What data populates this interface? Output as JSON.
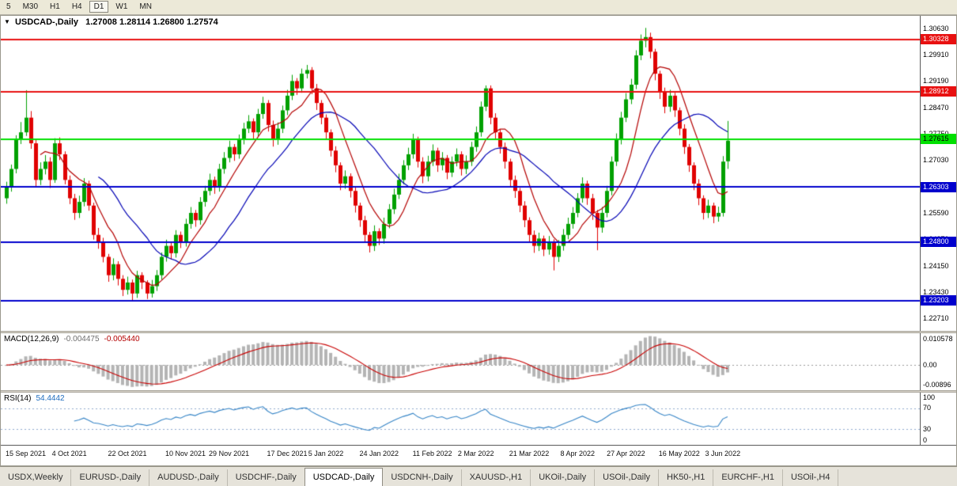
{
  "toolbar": {
    "timeframes": [
      "5",
      "M30",
      "H1",
      "H4",
      "D1",
      "W1",
      "MN"
    ],
    "active": "D1"
  },
  "chart": {
    "dropdown_glyph": "▼",
    "title_symbol": "USDCAD-,Daily",
    "title_ohlc": "1.27008 1.28114 1.26800 1.27574",
    "colors": {
      "up": "#00a000",
      "down": "#e00000",
      "ma_fast": "#b40000",
      "ma_slow": "#0000b4",
      "bg": "#ffffff"
    }
  },
  "price_axis": {
    "min": 1.2238,
    "max": 1.3098,
    "ticks": [
      "1.30630",
      "1.29910",
      "1.29190",
      "1.28470",
      "1.27750",
      "1.27030",
      "1.26310",
      "1.25590",
      "1.24870",
      "1.24150",
      "1.23430",
      "1.22710"
    ]
  },
  "hlines": [
    {
      "price": 1.30328,
      "label": "1.30328",
      "color": "#e81010",
      "text_color": "#ffffff"
    },
    {
      "price": 1.28912,
      "label": "1.28912",
      "color": "#e81010",
      "text_color": "#ffffff"
    },
    {
      "price": 1.27615,
      "label": "1.27615",
      "color": "#00e000",
      "text_color": "#000000"
    },
    {
      "price": 1.26303,
      "label": "1.26303",
      "color": "#0000cd",
      "text_color": "#ffffff"
    },
    {
      "price": 1.248,
      "label": "1.24800",
      "color": "#0000cd",
      "text_color": "#ffffff"
    },
    {
      "price": 1.23203,
      "label": "1.23203",
      "color": "#0000cd",
      "text_color": "#ffffff"
    }
  ],
  "chart_data": {
    "type": "candlestick",
    "symbol": "USDCAD",
    "timeframe": "Daily",
    "current_bar": {
      "open": 1.27008,
      "high": 1.28114,
      "low": 1.268,
      "close": 1.27574
    },
    "indicators": [
      {
        "type": "MA",
        "period": 8,
        "color": "#b40000"
      },
      {
        "type": "MA",
        "period": 20,
        "color": "#0000b4"
      },
      {
        "type": "MACD",
        "params": [
          12,
          26,
          9
        ]
      },
      {
        "type": "RSI",
        "params": [
          14
        ]
      }
    ],
    "candles": [
      [
        1.26,
        1.2645,
        1.2585,
        1.263
      ],
      [
        1.263,
        1.2692,
        1.2618,
        1.268
      ],
      [
        1.268,
        1.2772,
        1.2668,
        1.276
      ],
      [
        1.276,
        1.2808,
        1.2748,
        1.278
      ],
      [
        1.278,
        1.2895,
        1.277,
        1.282
      ],
      [
        1.282,
        1.2838,
        1.2735,
        1.275
      ],
      [
        1.275,
        1.276,
        1.2632,
        1.265
      ],
      [
        1.265,
        1.2698,
        1.2636,
        1.268
      ],
      [
        1.268,
        1.2718,
        1.2665,
        1.27
      ],
      [
        1.27,
        1.2712,
        1.2628,
        1.265
      ],
      [
        1.265,
        1.2764,
        1.2642,
        1.275
      ],
      [
        1.275,
        1.2766,
        1.2704,
        1.272
      ],
      [
        1.272,
        1.2728,
        1.2638,
        1.265
      ],
      [
        1.265,
        1.2662,
        1.2584,
        1.26
      ],
      [
        1.26,
        1.2612,
        1.2541,
        1.256
      ],
      [
        1.256,
        1.2607,
        1.2546,
        1.259
      ],
      [
        1.259,
        1.2655,
        1.2578,
        1.264
      ],
      [
        1.264,
        1.2648,
        1.2566,
        1.258
      ],
      [
        1.258,
        1.2588,
        1.2487,
        1.25
      ],
      [
        1.25,
        1.2519,
        1.2462,
        1.248
      ],
      [
        1.248,
        1.2492,
        1.2425,
        1.244
      ],
      [
        1.244,
        1.2448,
        1.2372,
        1.239
      ],
      [
        1.239,
        1.2436,
        1.2376,
        1.242
      ],
      [
        1.242,
        1.2428,
        1.2362,
        1.238
      ],
      [
        1.238,
        1.239,
        1.2333,
        1.235
      ],
      [
        1.235,
        1.2386,
        1.2337,
        1.237
      ],
      [
        1.237,
        1.2378,
        1.232,
        1.234
      ],
      [
        1.234,
        1.2402,
        1.2328,
        1.239
      ],
      [
        1.239,
        1.2398,
        1.2352,
        1.237
      ],
      [
        1.237,
        1.2376,
        1.2325,
        1.234
      ],
      [
        1.234,
        1.2377,
        1.2329,
        1.236
      ],
      [
        1.236,
        1.2404,
        1.2347,
        1.239
      ],
      [
        1.239,
        1.2452,
        1.2378,
        1.244
      ],
      [
        1.244,
        1.2487,
        1.2427,
        1.247
      ],
      [
        1.247,
        1.2478,
        1.2433,
        1.245
      ],
      [
        1.245,
        1.2513,
        1.2438,
        1.25
      ],
      [
        1.25,
        1.2509,
        1.2464,
        1.248
      ],
      [
        1.248,
        1.2544,
        1.2468,
        1.253
      ],
      [
        1.253,
        1.2576,
        1.2517,
        1.256
      ],
      [
        1.256,
        1.2568,
        1.2522,
        1.254
      ],
      [
        1.254,
        1.2603,
        1.2528,
        1.259
      ],
      [
        1.259,
        1.2634,
        1.2577,
        1.262
      ],
      [
        1.262,
        1.2667,
        1.2608,
        1.265
      ],
      [
        1.265,
        1.2659,
        1.2612,
        1.263
      ],
      [
        1.263,
        1.2694,
        1.2618,
        1.268
      ],
      [
        1.268,
        1.2726,
        1.2667,
        1.271
      ],
      [
        1.271,
        1.2757,
        1.2698,
        1.274
      ],
      [
        1.274,
        1.2748,
        1.2702,
        1.272
      ],
      [
        1.272,
        1.2774,
        1.2708,
        1.276
      ],
      [
        1.276,
        1.2806,
        1.2747,
        1.279
      ],
      [
        1.279,
        1.2827,
        1.2778,
        1.281
      ],
      [
        1.281,
        1.2818,
        1.2762,
        1.278
      ],
      [
        1.278,
        1.2844,
        1.2768,
        1.283
      ],
      [
        1.283,
        1.2877,
        1.2817,
        1.286
      ],
      [
        1.286,
        1.2868,
        1.2782,
        1.28
      ],
      [
        1.28,
        1.2812,
        1.2741,
        1.276
      ],
      [
        1.276,
        1.2807,
        1.2746,
        1.279
      ],
      [
        1.279,
        1.2853,
        1.2778,
        1.284
      ],
      [
        1.284,
        1.2896,
        1.2827,
        1.288
      ],
      [
        1.288,
        1.2937,
        1.2868,
        1.292
      ],
      [
        1.292,
        1.2928,
        1.2882,
        1.29
      ],
      [
        1.29,
        1.2954,
        1.2888,
        1.294
      ],
      [
        1.294,
        1.2964,
        1.2927,
        1.295
      ],
      [
        1.295,
        1.2958,
        1.2884,
        1.29
      ],
      [
        1.29,
        1.2912,
        1.2841,
        1.286
      ],
      [
        1.286,
        1.2868,
        1.2802,
        1.282
      ],
      [
        1.282,
        1.2829,
        1.2762,
        1.278
      ],
      [
        1.278,
        1.2788,
        1.2714,
        1.273
      ],
      [
        1.273,
        1.2742,
        1.2671,
        1.269
      ],
      [
        1.269,
        1.2698,
        1.2622,
        1.264
      ],
      [
        1.264,
        1.2676,
        1.2626,
        1.266
      ],
      [
        1.266,
        1.2668,
        1.2602,
        1.262
      ],
      [
        1.262,
        1.2632,
        1.2561,
        1.258
      ],
      [
        1.258,
        1.2588,
        1.2522,
        1.254
      ],
      [
        1.254,
        1.2552,
        1.2481,
        1.25
      ],
      [
        1.25,
        1.2508,
        1.2452,
        1.247
      ],
      [
        1.247,
        1.2526,
        1.2456,
        1.251
      ],
      [
        1.251,
        1.2518,
        1.2472,
        1.249
      ],
      [
        1.249,
        1.2547,
        1.2476,
        1.253
      ],
      [
        1.253,
        1.2584,
        1.2518,
        1.257
      ],
      [
        1.257,
        1.2626,
        1.2557,
        1.261
      ],
      [
        1.261,
        1.2667,
        1.2598,
        1.265
      ],
      [
        1.265,
        1.2704,
        1.2638,
        1.269
      ],
      [
        1.269,
        1.2738,
        1.2677,
        1.272
      ],
      [
        1.272,
        1.2776,
        1.2708,
        1.276
      ],
      [
        1.276,
        1.2768,
        1.2684,
        1.27
      ],
      [
        1.27,
        1.2712,
        1.2641,
        1.266
      ],
      [
        1.266,
        1.2716,
        1.2646,
        1.27
      ],
      [
        1.27,
        1.2747,
        1.2688,
        1.273
      ],
      [
        1.273,
        1.2738,
        1.2672,
        1.269
      ],
      [
        1.269,
        1.2726,
        1.2676,
        1.271
      ],
      [
        1.271,
        1.2718,
        1.2652,
        1.267
      ],
      [
        1.267,
        1.2714,
        1.2658,
        1.27
      ],
      [
        1.27,
        1.2736,
        1.2687,
        1.272
      ],
      [
        1.272,
        1.2728,
        1.2662,
        1.268
      ],
      [
        1.268,
        1.2717,
        1.2666,
        1.27
      ],
      [
        1.27,
        1.2754,
        1.2688,
        1.274
      ],
      [
        1.274,
        1.2796,
        1.2727,
        1.278
      ],
      [
        1.278,
        1.2864,
        1.2768,
        1.285
      ],
      [
        1.285,
        1.2908,
        1.2838,
        1.29
      ],
      [
        1.29,
        1.2908,
        1.2802,
        1.282
      ],
      [
        1.282,
        1.2832,
        1.2761,
        1.278
      ],
      [
        1.278,
        1.2788,
        1.2722,
        1.274
      ],
      [
        1.274,
        1.2752,
        1.2681,
        1.27
      ],
      [
        1.27,
        1.2708,
        1.2632,
        1.265
      ],
      [
        1.265,
        1.2662,
        1.2601,
        1.262
      ],
      [
        1.262,
        1.2628,
        1.2562,
        1.258
      ],
      [
        1.258,
        1.2592,
        1.2521,
        1.254
      ],
      [
        1.254,
        1.2548,
        1.2482,
        1.25
      ],
      [
        1.25,
        1.2512,
        1.2451,
        1.247
      ],
      [
        1.247,
        1.2506,
        1.2456,
        1.249
      ],
      [
        1.249,
        1.2498,
        1.2442,
        1.246
      ],
      [
        1.246,
        1.2497,
        1.2446,
        1.248
      ],
      [
        1.248,
        1.2488,
        1.2403,
        1.244
      ],
      [
        1.244,
        1.2486,
        1.2426,
        1.247
      ],
      [
        1.247,
        1.2516,
        1.2457,
        1.25
      ],
      [
        1.25,
        1.2547,
        1.2488,
        1.253
      ],
      [
        1.253,
        1.2576,
        1.2517,
        1.256
      ],
      [
        1.256,
        1.2614,
        1.2548,
        1.26
      ],
      [
        1.26,
        1.2657,
        1.2588,
        1.264
      ],
      [
        1.264,
        1.2648,
        1.2582,
        1.26
      ],
      [
        1.26,
        1.2612,
        1.2541,
        1.256
      ],
      [
        1.256,
        1.2568,
        1.2458,
        1.252
      ],
      [
        1.252,
        1.2576,
        1.2506,
        1.256
      ],
      [
        1.256,
        1.2634,
        1.2548,
        1.262
      ],
      [
        1.262,
        1.2714,
        1.2608,
        1.27
      ],
      [
        1.27,
        1.2777,
        1.2688,
        1.276
      ],
      [
        1.276,
        1.2836,
        1.2747,
        1.282
      ],
      [
        1.282,
        1.2887,
        1.2808,
        1.287
      ],
      [
        1.287,
        1.2926,
        1.2857,
        1.291
      ],
      [
        1.291,
        1.3004,
        1.2898,
        1.299
      ],
      [
        1.299,
        1.3047,
        1.2977,
        1.303
      ],
      [
        1.303,
        1.3065,
        1.3012,
        1.304
      ],
      [
        1.304,
        1.3052,
        1.2982,
        1.3
      ],
      [
        1.3,
        1.3008,
        1.2922,
        1.294
      ],
      [
        1.294,
        1.2948,
        1.2871,
        1.289
      ],
      [
        1.289,
        1.2902,
        1.2832,
        1.285
      ],
      [
        1.285,
        1.2896,
        1.2836,
        1.288
      ],
      [
        1.288,
        1.2888,
        1.2822,
        1.284
      ],
      [
        1.284,
        1.2848,
        1.2772,
        1.279
      ],
      [
        1.279,
        1.2802,
        1.2721,
        1.274
      ],
      [
        1.274,
        1.2748,
        1.2672,
        1.269
      ],
      [
        1.269,
        1.2698,
        1.2622,
        1.264
      ],
      [
        1.264,
        1.2652,
        1.2581,
        1.26
      ],
      [
        1.26,
        1.2608,
        1.2542,
        1.256
      ],
      [
        1.256,
        1.2596,
        1.2546,
        1.258
      ],
      [
        1.258,
        1.2588,
        1.2532,
        1.255
      ],
      [
        1.255,
        1.2577,
        1.2536,
        1.256
      ],
      [
        1.256,
        1.2715,
        1.255,
        1.27
      ],
      [
        1.2701,
        1.2811,
        1.268,
        1.2757
      ]
    ],
    "date_labels": [
      {
        "text": "15 Sep 2021",
        "i": 4
      },
      {
        "text": "4 Oct 2021",
        "i": 13
      },
      {
        "text": "22 Oct 2021",
        "i": 25
      },
      {
        "text": "10 Nov 2021",
        "i": 37
      },
      {
        "text": "29 Nov 2021",
        "i": 46
      },
      {
        "text": "17 Dec 2021",
        "i": 58
      },
      {
        "text": "5 Jan 2022",
        "i": 66
      },
      {
        "text": "24 Jan 2022",
        "i": 77
      },
      {
        "text": "11 Feb 2022",
        "i": 88
      },
      {
        "text": "2 Mar 2022",
        "i": 97
      },
      {
        "text": "21 Mar 2022",
        "i": 108
      },
      {
        "text": "8 Apr 2022",
        "i": 118
      },
      {
        "text": "27 Apr 2022",
        "i": 128
      },
      {
        "text": "16 May 2022",
        "i": 139
      },
      {
        "text": "3 Jun 2022",
        "i": 148
      }
    ]
  },
  "macd": {
    "name": "MACD(12,26,9)",
    "value_main": "-0.004475",
    "value_signal": "-0.005440",
    "axis_top": "0.010578",
    "axis_zero": "0.00",
    "axis_bottom": "-0.00896",
    "params": {
      "fast": 12,
      "slow": 26,
      "signal": 9
    },
    "colors": {
      "hist": "#b4b4b4",
      "signal": "#c80000"
    }
  },
  "rsi": {
    "name": "RSI(14)",
    "value": "54.4442",
    "axis": [
      "100",
      "70",
      "30",
      "0"
    ],
    "levels": [
      70,
      30
    ],
    "period": 14,
    "color": "#3584c6",
    "level_color": "#8fa8cc"
  },
  "tabs": {
    "items": [
      "USDX,Weekly",
      "EURUSD-,Daily",
      "AUDUSD-,Daily",
      "USDCHF-,Daily",
      "USDCAD-,Daily",
      "USDCNH-,Daily",
      "XAUUSD-,H1",
      "UKOil-,Daily",
      "USOil-,Daily",
      "HK50-,H1",
      "EURCHF-,H1",
      "USOil-,H4"
    ],
    "active": "USDCAD-,Daily"
  }
}
